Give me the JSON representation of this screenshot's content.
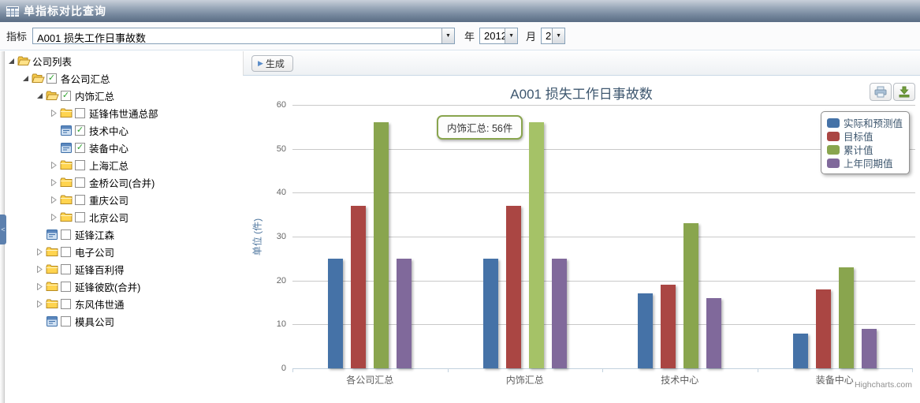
{
  "titlebar": {
    "title": "单指标对比查询",
    "icon": "grid-icon"
  },
  "filters": {
    "indicator_label": "指标",
    "indicator_value": "A001 损失工作日事故数",
    "year_label": "年",
    "year_value": "2012",
    "month_label": "月",
    "month_value": "2"
  },
  "toolbar": {
    "generate_label": "生成"
  },
  "collapse_handle": "<",
  "tree": {
    "items": [
      {
        "label": "公司列表",
        "level": 0,
        "icon": "folder-open",
        "arrow": "open",
        "checkbox": "none"
      },
      {
        "label": "各公司汇总",
        "level": 1,
        "icon": "folder-open",
        "arrow": "open",
        "checkbox": "checked"
      },
      {
        "label": "内饰汇总",
        "level": 2,
        "icon": "folder-open",
        "arrow": "open",
        "checkbox": "checked"
      },
      {
        "label": "延锋伟世通总部",
        "level": 3,
        "icon": "folder-closed",
        "arrow": "closed",
        "checkbox": "unchecked"
      },
      {
        "label": "技术中心",
        "level": 3,
        "icon": "leaf",
        "arrow": "none",
        "checkbox": "checked"
      },
      {
        "label": "装备中心",
        "level": 3,
        "icon": "leaf",
        "arrow": "none",
        "checkbox": "checked"
      },
      {
        "label": "上海汇总",
        "level": 3,
        "icon": "folder-closed",
        "arrow": "closed",
        "checkbox": "unchecked"
      },
      {
        "label": "金桥公司(合并)",
        "level": 3,
        "icon": "folder-closed",
        "arrow": "closed",
        "checkbox": "unchecked"
      },
      {
        "label": "重庆公司",
        "level": 3,
        "icon": "folder-closed",
        "arrow": "closed",
        "checkbox": "unchecked"
      },
      {
        "label": "北京公司",
        "level": 3,
        "icon": "folder-closed",
        "arrow": "closed",
        "checkbox": "unchecked"
      },
      {
        "label": "延锋江森",
        "level": 2,
        "icon": "leaf",
        "arrow": "none",
        "checkbox": "unchecked"
      },
      {
        "label": "电子公司",
        "level": 2,
        "icon": "folder-closed",
        "arrow": "closed",
        "checkbox": "unchecked"
      },
      {
        "label": "延锋百利得",
        "level": 2,
        "icon": "folder-closed",
        "arrow": "closed",
        "checkbox": "unchecked"
      },
      {
        "label": "延锋彼欧(合并)",
        "level": 2,
        "icon": "folder-closed",
        "arrow": "closed",
        "checkbox": "unchecked"
      },
      {
        "label": "东风伟世通",
        "level": 2,
        "icon": "folder-closed",
        "arrow": "closed",
        "checkbox": "unchecked"
      },
      {
        "label": "模具公司",
        "level": 2,
        "icon": "leaf",
        "arrow": "none",
        "checkbox": "unchecked"
      }
    ]
  },
  "chart_data": {
    "type": "bar",
    "title": "A001 损失工作日事故数",
    "categories": [
      "各公司汇总",
      "内饰汇总",
      "技术中心",
      "装备中心"
    ],
    "series": [
      {
        "name": "实际和预测值",
        "color": "#4572A7",
        "values": [
          25,
          25,
          17,
          8
        ]
      },
      {
        "name": "目标值",
        "color": "#AA4643",
        "values": [
          37,
          37,
          19,
          18
        ]
      },
      {
        "name": "累计值",
        "color": "#89A54E",
        "values": [
          56,
          56,
          33,
          23
        ]
      },
      {
        "name": "上年同期值",
        "color": "#80699B",
        "values": [
          25,
          25,
          16,
          9
        ]
      }
    ],
    "xlabel": "",
    "ylabel": "单位 (件)",
    "ylim": [
      0,
      60
    ],
    "tick_step": 10,
    "grid": true,
    "legend_position": "top-right",
    "highlight": {
      "series": "累计值",
      "category": "内饰汇总",
      "hover_color": "#A5C267"
    },
    "tooltip": {
      "text": "内饰汇总: 56件",
      "border_color": "#89A54E"
    },
    "credits": "Highcharts.com"
  }
}
